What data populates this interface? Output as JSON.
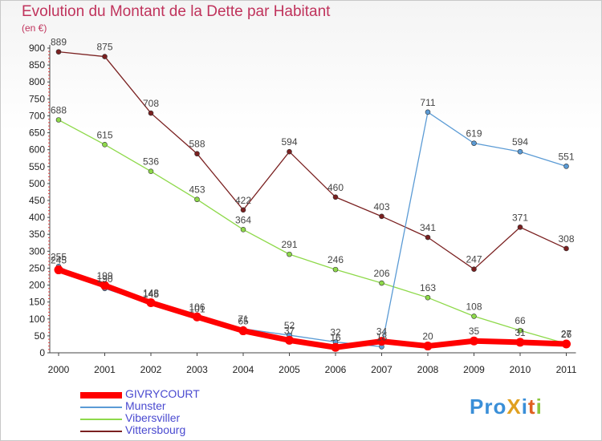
{
  "title": "Evolution du Montant de la Dette par Habitant",
  "unit": "(en €)",
  "logo": "ProXiti",
  "chart_data": {
    "type": "line",
    "title": "Evolution du Montant de la Dette par Habitant",
    "subtitle": "(en €)",
    "categories": [
      "2000",
      "2001",
      "2002",
      "2003",
      "2004",
      "2005",
      "2006",
      "2007",
      "2008",
      "2009",
      "2010",
      "2011"
    ],
    "ylim": [
      0,
      900
    ],
    "yticks": [
      0,
      50,
      100,
      150,
      200,
      250,
      300,
      350,
      400,
      450,
      500,
      550,
      600,
      650,
      700,
      750,
      800,
      850,
      900
    ],
    "grid": false,
    "legend_position": "bottom-left",
    "series": [
      {
        "name": "GIVRYCOURT",
        "color": "#ff0000",
        "values": [
          245,
          199,
          148,
          106,
          65,
          37,
          16,
          34,
          20,
          35,
          31,
          26
        ]
      },
      {
        "name": "Munster",
        "color": "#5b9bd5",
        "values": [
          255,
          190,
          145,
          101,
          71,
          52,
          32,
          18,
          711,
          619,
          594,
          551
        ]
      },
      {
        "name": "Vibersviller",
        "color": "#8ed94a",
        "values": [
          688,
          615,
          536,
          453,
          364,
          291,
          246,
          206,
          163,
          108,
          66,
          27
        ]
      },
      {
        "name": "Vittersbourg",
        "color": "#7a2020",
        "values": [
          889,
          875,
          708,
          588,
          422,
          594,
          460,
          403,
          341,
          247,
          371,
          308
        ]
      }
    ]
  }
}
